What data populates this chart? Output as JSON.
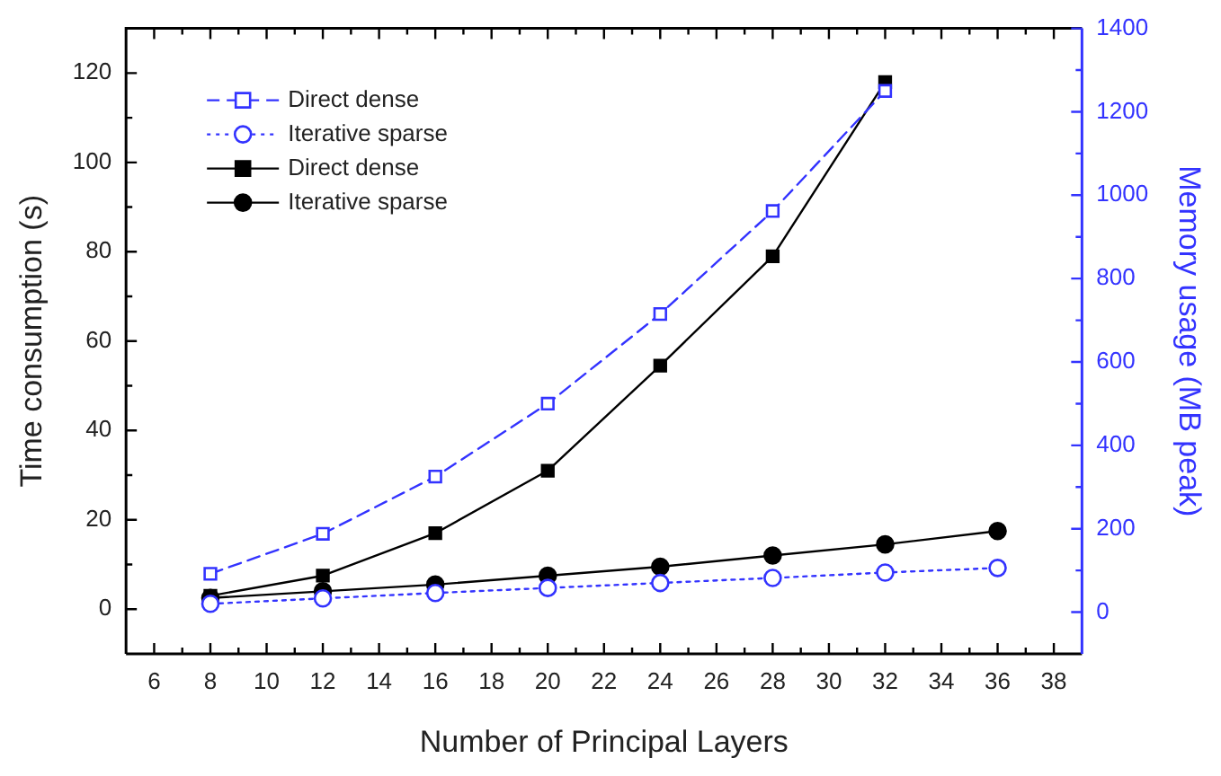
{
  "chart_data": {
    "type": "line",
    "xlabel": "Number of Principal Layers",
    "ylabel": "Time consumption (s)",
    "y2label": "Memory usage (MB peak)",
    "xlim": [
      5,
      39
    ],
    "xticks": [
      6,
      8,
      10,
      12,
      14,
      16,
      18,
      20,
      22,
      24,
      26,
      28,
      30,
      32,
      34,
      36,
      38
    ],
    "ylim": [
      -10,
      130
    ],
    "yticks": [
      0,
      20,
      40,
      60,
      80,
      100,
      120
    ],
    "y2lim": [
      -100,
      1400
    ],
    "y2ticks": [
      0,
      200,
      400,
      600,
      800,
      1000,
      1200,
      1400
    ],
    "grid": false,
    "legend": "top left",
    "series": [
      {
        "name": "Direct dense",
        "color": "#3333ff",
        "axis": "y2",
        "marker": "square",
        "line_style": "dashed",
        "x": [
          8,
          12,
          16,
          20,
          24,
          28,
          32
        ],
        "values": [
          92,
          188,
          325,
          500,
          715,
          962,
          1250
        ]
      },
      {
        "name": "Iterative sparse",
        "color": "#3333ff",
        "axis": "y2",
        "marker": "circle",
        "line_style": "dotted",
        "x": [
          8,
          12,
          16,
          20,
          24,
          28,
          32,
          36
        ],
        "values": [
          20,
          33,
          46,
          58,
          70,
          82,
          95,
          106
        ]
      },
      {
        "name": "Direct dense",
        "color": "#000000",
        "marker": "square",
        "line_style": "solid",
        "x": [
          8,
          12,
          16,
          20,
          24,
          28,
          32
        ],
        "values": [
          3,
          7.5,
          17,
          31,
          54.5,
          79,
          118
        ]
      },
      {
        "name": "Iterative sparse",
        "color": "#000000",
        "marker": "circle",
        "line_style": "solid",
        "x": [
          8,
          12,
          16,
          20,
          24,
          28,
          32,
          36
        ],
        "values": [
          2.5,
          4,
          5.5,
          7.5,
          9.5,
          12,
          14.5,
          17.5
        ]
      }
    ]
  }
}
